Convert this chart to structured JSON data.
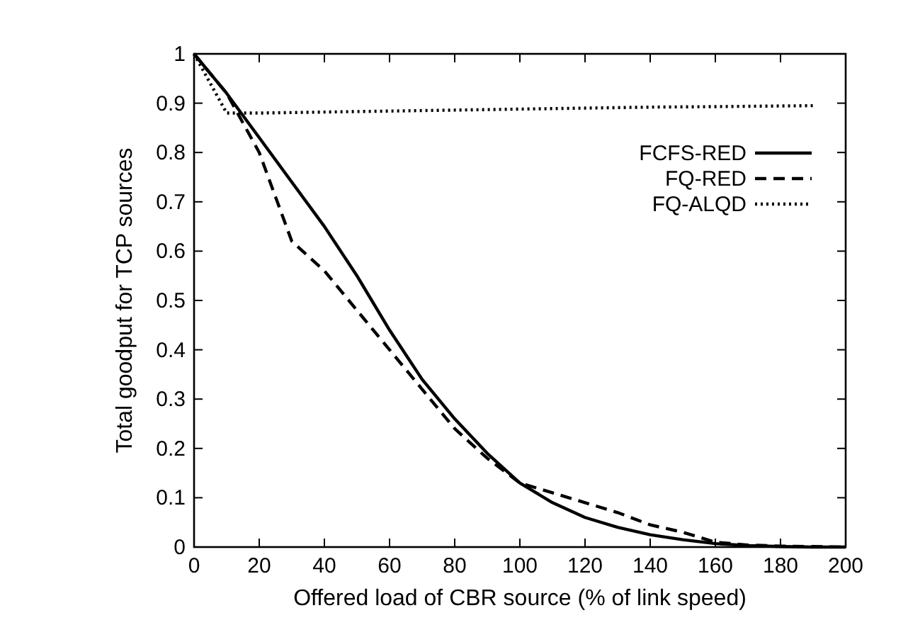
{
  "chart_data": {
    "type": "line",
    "xlabel": "Offered load of CBR source (% of link speed)",
    "ylabel": "Total goodput for TCP sources",
    "xlim": [
      0,
      200
    ],
    "xticks": [
      0,
      20,
      40,
      60,
      80,
      100,
      120,
      140,
      160,
      180,
      200
    ],
    "ylim": [
      0,
      1
    ],
    "yticks": [
      0,
      0.1,
      0.2,
      0.3,
      0.4,
      0.5,
      0.6,
      0.7,
      0.8,
      0.9,
      1
    ],
    "grid": false,
    "legend": "top right",
    "marker": "none",
    "x": [
      0,
      10,
      20,
      30,
      40,
      50,
      60,
      70,
      80,
      90,
      100,
      110,
      120,
      130,
      140,
      150,
      160,
      170,
      180,
      190,
      200
    ],
    "series": [
      {
        "name": "FCFS-RED",
        "color": "#000000",
        "line_style": "solid",
        "values": [
          1,
          0.92,
          0.83,
          0.74,
          0.65,
          0.55,
          0.44,
          0.34,
          0.26,
          0.19,
          0.13,
          0.09,
          0.06,
          0.04,
          0.025,
          0.015,
          0.007,
          0.003,
          0.001,
          0,
          0
        ]
      },
      {
        "name": "FQ-RED",
        "color": "#000000",
        "line_style": "dashed",
        "values": [
          1,
          0.92,
          0.8,
          0.62,
          0.56,
          0.48,
          0.4,
          0.32,
          0.24,
          0.18,
          0.13,
          0.11,
          0.09,
          0.07,
          0.045,
          0.03,
          0.01,
          0.004,
          0.002,
          0.001,
          0
        ]
      },
      {
        "name": "FQ-ALQD",
        "color": "#000000",
        "line_style": "dotted",
        "x": [
          0,
          5,
          10,
          20,
          40,
          60,
          80,
          100,
          120,
          140,
          160,
          190
        ],
        "values": [
          1,
          0.94,
          0.88,
          0.88,
          0.882,
          0.884,
          0.886,
          0.888,
          0.89,
          0.892,
          0.893,
          0.895
        ]
      }
    ]
  }
}
